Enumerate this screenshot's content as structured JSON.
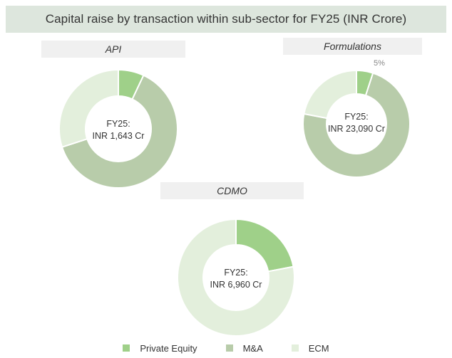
{
  "title": "Capital raise by transaction within sub-sector for FY25 (INR Crore)",
  "colors": {
    "private_equity": "#9fd089",
    "ma": "#b8ccaa",
    "ecm": "#e3efdc"
  },
  "legend": {
    "private_equity": "Private Equity",
    "ma": "M&A",
    "ecm": "ECM"
  },
  "chart_data": [
    {
      "type": "pie",
      "name": "API",
      "center_line1": "FY25:",
      "center_line2": "INR 1,643 Cr",
      "categories": [
        "Private Equity",
        "M&A",
        "ECM"
      ],
      "values": [
        7,
        63,
        30
      ]
    },
    {
      "type": "pie",
      "name": "Formulations",
      "center_line1": "FY25:",
      "center_line2": "INR 23,090 Cr",
      "categories": [
        "Private Equity",
        "M&A",
        "ECM"
      ],
      "values": [
        5,
        73,
        22
      ],
      "data_labels": [
        "5%",
        "",
        ""
      ]
    },
    {
      "type": "pie",
      "name": "CDMO",
      "center_line1": "FY25:",
      "center_line2": "INR 6,960 Cr",
      "categories": [
        "Private Equity",
        "M&A",
        "ECM"
      ],
      "values": [
        22,
        0,
        78
      ]
    }
  ]
}
